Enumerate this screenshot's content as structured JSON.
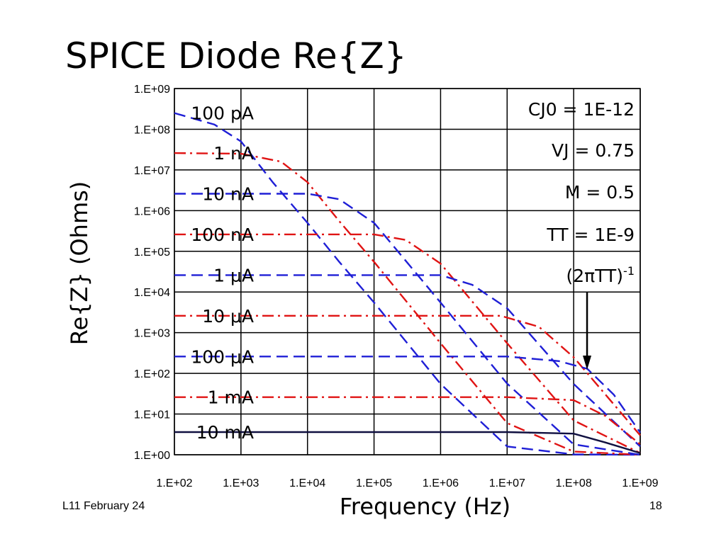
{
  "slide": {
    "title": "SPICE Diode Re{Z}",
    "footer_left": "L11 February 24",
    "page_number": "18"
  },
  "chart_data": {
    "type": "line",
    "xlabel": "Frequency (Hz)",
    "ylabel": "Re{Z} (Ohms)",
    "x_scale": "log",
    "y_scale": "log",
    "xlim": [
      100,
      1000000000
    ],
    "ylim": [
      1,
      1000000000
    ],
    "grid": true,
    "x_ticks": [
      "1.E+02",
      "1.E+03",
      "1.E+04",
      "1.E+05",
      "1.E+06",
      "1.E+07",
      "1.E+08",
      "1.E+09"
    ],
    "y_ticks": [
      "1.E+00",
      "1.E+01",
      "1.E+02",
      "1.E+03",
      "1.E+04",
      "1.E+05",
      "1.E+06",
      "1.E+07",
      "1.E+08",
      "1.E+09"
    ],
    "annotations": {
      "cj0": "CJ0 = 1E-12",
      "vj": "VJ = 0.75",
      "m": "M = 0.5",
      "tt": "TT = 1E-9",
      "corner_label": "(2πTT)",
      "corner_sup": "-1",
      "arrow_at_frequency": 159000000
    },
    "series": [
      {
        "name": "100 pA",
        "color": "#1f1fd6",
        "dash": "dash",
        "points": [
          [
            100,
            250000000
          ],
          [
            400,
            130000000
          ],
          [
            1000,
            50000000
          ],
          [
            3000,
            5000000
          ],
          [
            10000,
            500000
          ],
          [
            30000,
            55000
          ],
          [
            100000,
            5500
          ],
          [
            1000000,
            55
          ],
          [
            10000000,
            1.6
          ],
          [
            100000000,
            1.02
          ],
          [
            1000000000,
            1.0
          ]
        ]
      },
      {
        "name": "1 nA",
        "color": "#e01414",
        "dash": "dashdot",
        "points": [
          [
            100,
            26000000
          ],
          [
            1000,
            25000000
          ],
          [
            4000,
            16000000
          ],
          [
            10000,
            5000000
          ],
          [
            30000,
            550000
          ],
          [
            100000,
            55000
          ],
          [
            1000000,
            550
          ],
          [
            10000000,
            6
          ],
          [
            100000000,
            1.2
          ],
          [
            1000000000,
            1.0
          ]
        ]
      },
      {
        "name": "10 nA",
        "color": "#1f1fd6",
        "dash": "dash",
        "points": [
          [
            100,
            2600000
          ],
          [
            10000,
            2600000
          ],
          [
            30000,
            1900000
          ],
          [
            100000,
            500000
          ],
          [
            1000000,
            5500
          ],
          [
            10000000,
            56
          ],
          [
            100000000,
            1.8
          ],
          [
            1000000000,
            1.0
          ]
        ]
      },
      {
        "name": "100 nA",
        "color": "#e01414",
        "dash": "dashdot",
        "points": [
          [
            100,
            260000
          ],
          [
            100000,
            260000
          ],
          [
            300000,
            190000
          ],
          [
            1000000,
            50000
          ],
          [
            10000000,
            550
          ],
          [
            100000000,
            7
          ],
          [
            1000000000,
            1.1
          ]
        ]
      },
      {
        "name": "1 μA",
        "color": "#1f1fd6",
        "dash": "dash",
        "points": [
          [
            100,
            26000
          ],
          [
            1000000,
            26000
          ],
          [
            3000000,
            15000
          ],
          [
            10000000,
            4000
          ],
          [
            100000000,
            55
          ],
          [
            1000000000,
            1.6
          ]
        ]
      },
      {
        "name": "10 μA",
        "color": "#e01414",
        "dash": "dashdot",
        "points": [
          [
            100,
            2600
          ],
          [
            8000000,
            2600
          ],
          [
            30000000,
            1400
          ],
          [
            100000000,
            250
          ],
          [
            1000000000,
            3
          ]
        ]
      },
      {
        "name": "100 μA",
        "color": "#1f1fd6",
        "dash": "dash",
        "points": [
          [
            100,
            260
          ],
          [
            10000000,
            260
          ],
          [
            60000000,
            200
          ],
          [
            160000000,
            130
          ],
          [
            400000000,
            30
          ],
          [
            1000000000,
            3.5
          ]
        ]
      },
      {
        "name": "1 mA",
        "color": "#e01414",
        "dash": "dashdot",
        "points": [
          [
            100,
            26
          ],
          [
            10000000,
            26
          ],
          [
            100000000,
            22
          ],
          [
            300000000,
            9
          ],
          [
            1000000000,
            1.8
          ]
        ]
      },
      {
        "name": "10 mA",
        "color": "#101040",
        "dash": "solid",
        "points": [
          [
            100,
            3.6
          ],
          [
            10000000,
            3.6
          ],
          [
            100000000,
            3.3
          ],
          [
            300000000,
            2.0
          ],
          [
            1000000000,
            1.1
          ]
        ]
      }
    ]
  }
}
